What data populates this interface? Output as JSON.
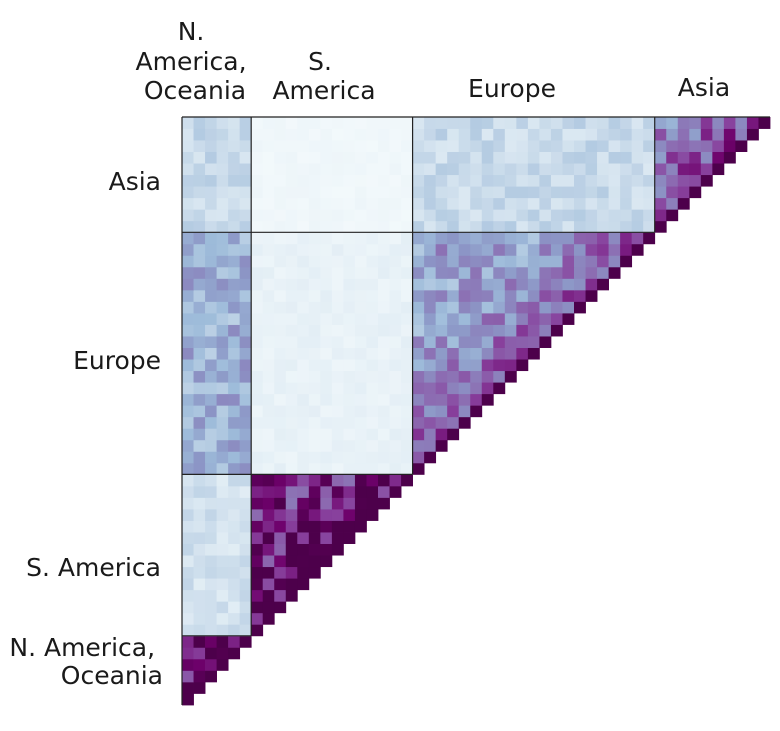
{
  "chart_data": {
    "type": "heatmap",
    "title": "",
    "layout": "lower-left triangular matrix, ordered bottom-left to top-right",
    "groups": [
      {
        "name": "N. America, Oceania",
        "size": 6
      },
      {
        "name": "S. America",
        "size": 14
      },
      {
        "name": "Europe",
        "size": 21
      },
      {
        "name": "Asia",
        "size": 10
      }
    ],
    "top_labels": [
      [
        "N.",
        "America,",
        "Oceania"
      ],
      [
        "S.",
        "America"
      ],
      [
        "Europe"
      ],
      [
        "Asia"
      ]
    ],
    "left_labels": [
      [
        "Asia"
      ],
      [
        "Europe"
      ],
      [
        "S. America"
      ],
      [
        "N.  America,",
        "Oceania"
      ]
    ],
    "block_levels": {
      "N. America, Oceania|N. America, Oceania": 0.7,
      "S. America|N. America, Oceania": 0.18,
      "S. America|S. America": 0.72,
      "Europe|N. America, Oceania": 0.4,
      "Europe|S. America": 0.08,
      "Europe|Europe": 0.45,
      "Asia|N. America, Oceania": 0.22,
      "Asia|S. America": 0.04,
      "Asia|Europe": 0.22,
      "Asia|Asia": 0.5
    },
    "diagonal_level": 1.0,
    "colormap": [
      "#f7fcfd",
      "#e0ecf4",
      "#bfd3e6",
      "#9ebcda",
      "#8c96c6",
      "#8c6bb1",
      "#88419d",
      "#6e016b",
      "#4d004b"
    ]
  }
}
